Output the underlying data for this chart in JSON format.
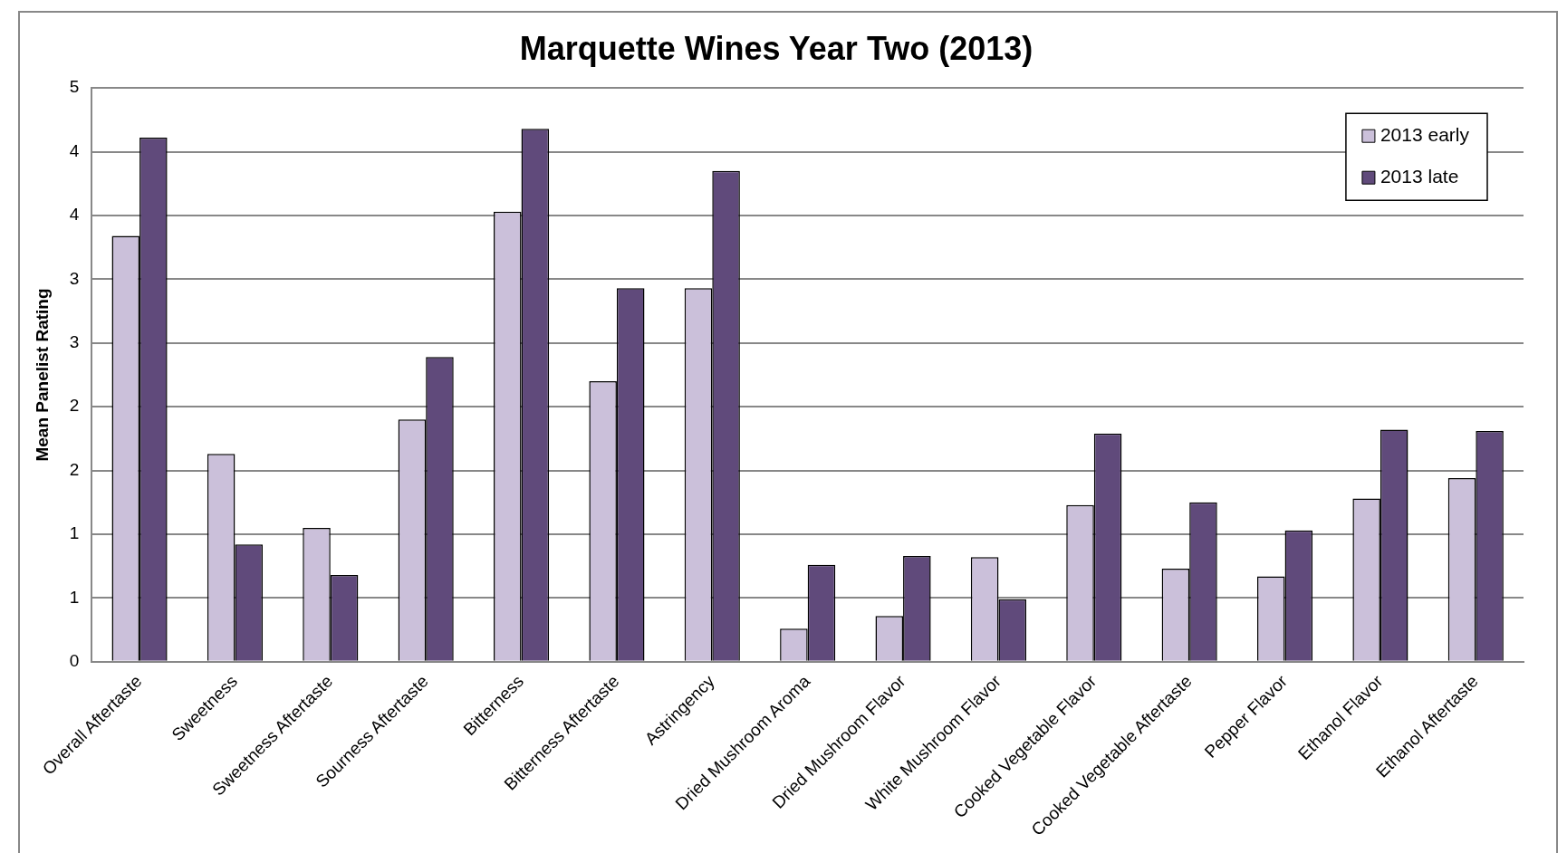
{
  "chart_data": {
    "type": "bar",
    "title": "Marquette Wines Year Two (2013)",
    "ylabel": "Mean Panelist Rating",
    "categories": [
      "Overall Aftertaste",
      "Sweetness",
      "Sweetness Aftertaste",
      "Sourness Aftertaste",
      "Bitterness",
      "Bitterness Aftertaste",
      "Astringency",
      "Dried Mushroom Aroma",
      "Dried Mushroom Flavor",
      "White Mushroom Flavor",
      "Cooked Vegetable Flavor",
      "Cooked Vegetable Aftertaste",
      "Pepper Flavor",
      "Ethanol Flavor",
      "Ethanol Aftertaste"
    ],
    "series": [
      {
        "name": "2013 early",
        "color": "#cbc0da",
        "values": [
          3.34,
          1.63,
          1.05,
          1.9,
          3.53,
          2.2,
          2.93,
          0.26,
          0.36,
          0.82,
          1.23,
          0.73,
          0.67,
          1.28,
          1.44
        ]
      },
      {
        "name": "2013 late",
        "color": "#604a7b",
        "values": [
          4.11,
          0.92,
          0.68,
          2.39,
          4.18,
          2.93,
          3.85,
          0.76,
          0.83,
          0.49,
          1.79,
          1.25,
          1.03,
          1.82,
          1.81
        ]
      }
    ],
    "ylim": [
      0,
      4.5
    ],
    "yticks": [
      0,
      {
        "value": 0.5,
        "label": "1"
      },
      1,
      {
        "value": 1.5,
        "label": "2"
      },
      2,
      {
        "value": 2.5,
        "label": "3"
      },
      3,
      {
        "value": 3.5,
        "label": "4"
      },
      4,
      {
        "value": 4.5,
        "label": "5"
      }
    ],
    "grid": "y",
    "legend": "top right"
  }
}
